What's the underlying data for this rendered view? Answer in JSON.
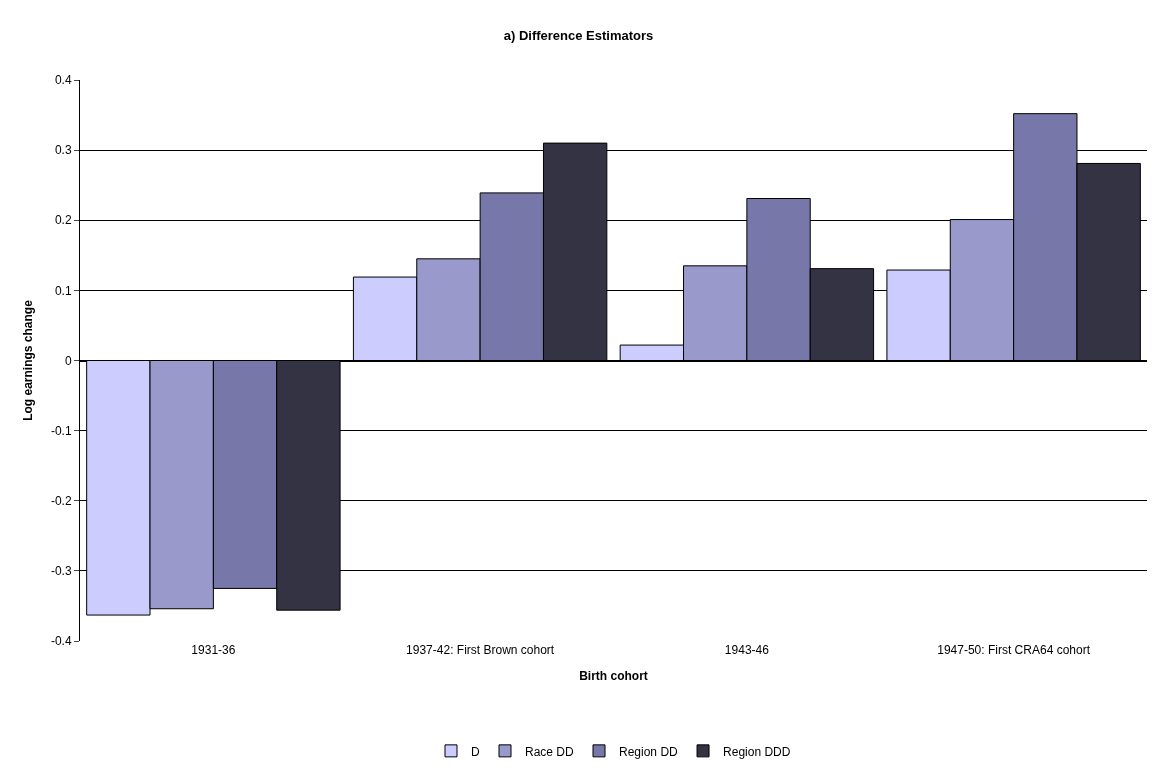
{
  "chart_data": {
    "type": "bar",
    "title": "a) Difference Estimators",
    "xlabel": "Birth cohort",
    "ylabel": "Log earnings change",
    "categories": [
      "1931-36",
      "1937-42: First Brown cohort",
      "1943-46",
      "1947-50: First CRA64 cohort"
    ],
    "series": [
      {
        "name": "D",
        "color": "#ccccff",
        "values": [
          -0.363,
          0.119,
          0.022,
          0.129
        ]
      },
      {
        "name": "Race DD",
        "color": "#9999cc",
        "values": [
          -0.354,
          0.145,
          0.135,
          0.201
        ]
      },
      {
        "name": "Region DD",
        "color": "#7777aa",
        "values": [
          -0.325,
          0.239,
          0.231,
          0.352
        ]
      },
      {
        "name": "Region DDD",
        "color": "#333344",
        "values": [
          -0.356,
          0.31,
          0.131,
          0.281
        ]
      }
    ],
    "ylim": [
      -0.4,
      0.4
    ],
    "yticks": [
      -0.4,
      -0.3,
      -0.2,
      -0.1,
      0,
      0.1,
      0.2,
      0.3,
      0.4
    ],
    "grid": "y",
    "legend": "bottom"
  }
}
